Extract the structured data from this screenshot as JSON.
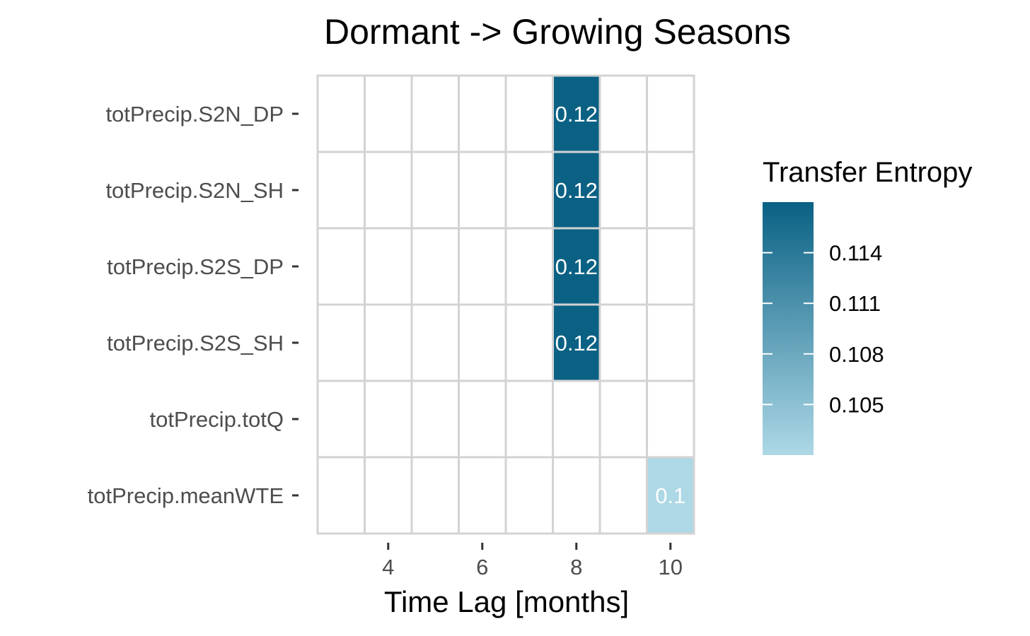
{
  "chart_data": {
    "type": "heatmap",
    "title": "Dormant -> Growing Seasons",
    "xlabel": "Time Lag [months]",
    "ylabel": "",
    "x_columns": [
      3,
      4,
      5,
      6,
      7,
      8,
      9,
      10
    ],
    "x_ticks": [
      "4",
      "6",
      "8",
      "10"
    ],
    "y_categories": [
      "totPrecip.S2N_DP",
      "totPrecip.S2N_SH",
      "totPrecip.S2S_DP",
      "totPrecip.S2S_SH",
      "totPrecip.totQ",
      "totPrecip.meanWTE"
    ],
    "cells": [
      {
        "y": "totPrecip.S2N_DP",
        "x": 8,
        "value": 0.117,
        "label": "0.12"
      },
      {
        "y": "totPrecip.S2N_SH",
        "x": 8,
        "value": 0.117,
        "label": "0.12"
      },
      {
        "y": "totPrecip.S2S_DP",
        "x": 8,
        "value": 0.117,
        "label": "0.12"
      },
      {
        "y": "totPrecip.S2S_SH",
        "x": 8,
        "value": 0.117,
        "label": "0.12"
      },
      {
        "y": "totPrecip.meanWTE",
        "x": 10,
        "value": 0.102,
        "label": "0.1"
      }
    ],
    "legend": {
      "title": "Transfer Entropy",
      "position": "right",
      "range": [
        0.102,
        0.117
      ],
      "ticks": [
        0.105,
        0.108,
        0.111,
        0.114
      ],
      "tick_labels": [
        "0.105",
        "0.108",
        "0.111",
        "0.114"
      ],
      "color_low": "#ADD8E6",
      "color_high": "#0A6184"
    },
    "colors": {
      "grid": "#D3D3D3",
      "empty_cell": "#FFFFFF",
      "tick_text": "#4D4D4D",
      "cell_text": "#FFFFFF"
    }
  }
}
